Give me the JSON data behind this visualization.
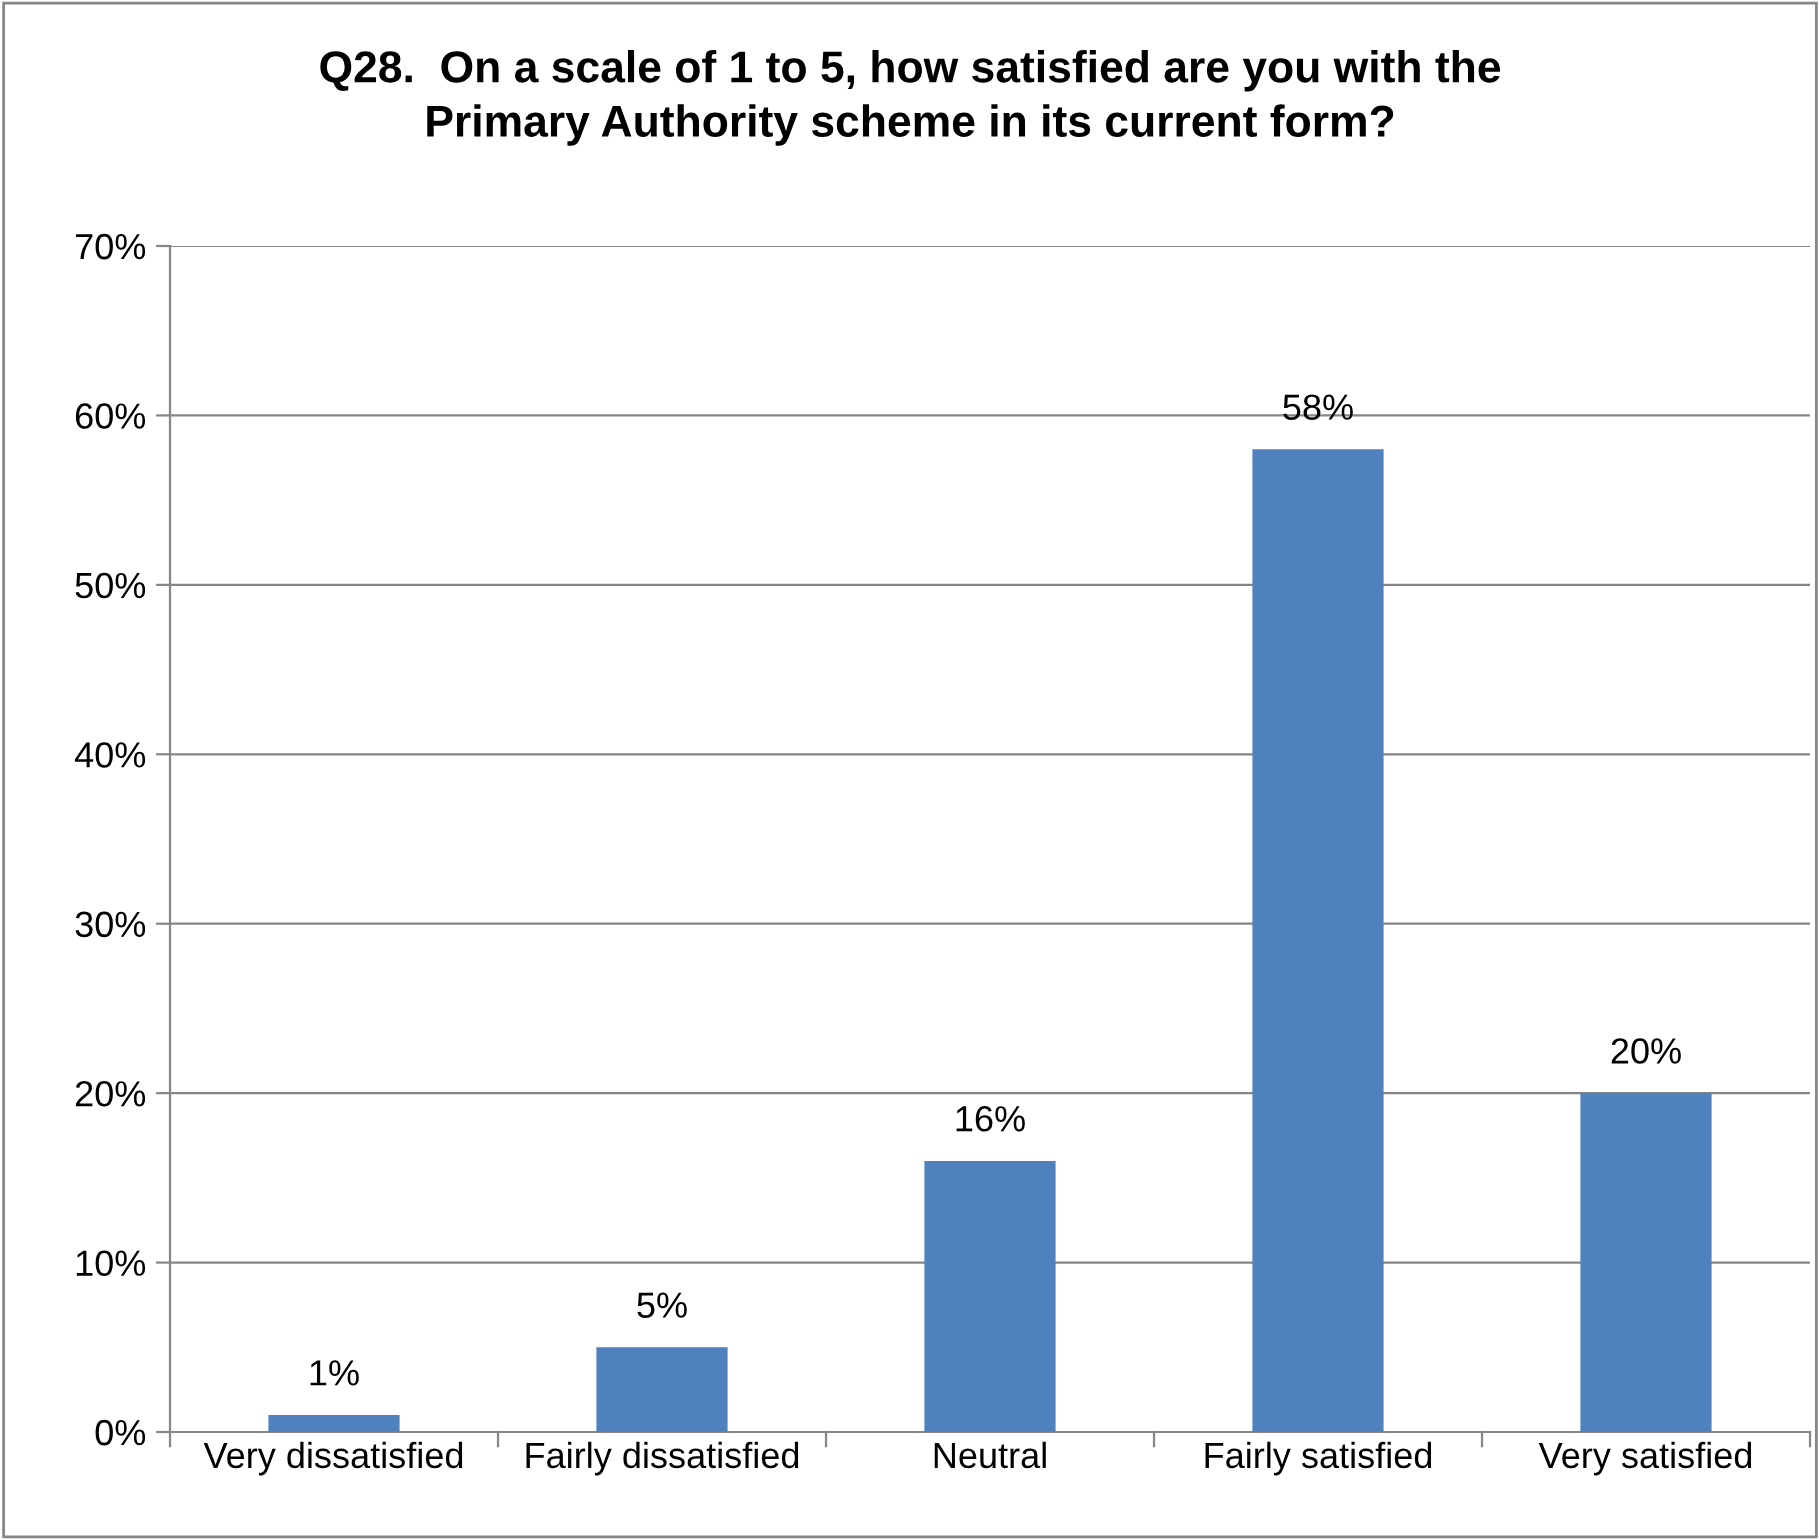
{
  "chart_data": {
    "type": "bar",
    "title": "Q28.  On a scale of 1 to 5, how satisfied are you with the\nPrimary Authority scheme in its current form?",
    "categories": [
      "Very dissatisfied",
      "Fairly dissatisfied",
      "Neutral",
      "Fairly satisfied",
      "Very satisfied"
    ],
    "values": [
      1,
      5,
      16,
      58,
      20
    ],
    "value_labels": [
      "1%",
      "5%",
      "16%",
      "58%",
      "20%"
    ],
    "color": "#4f81bd",
    "ylim": [
      0,
      70
    ],
    "yticks": [
      {
        "value": 0,
        "label": "0%"
      },
      {
        "value": 10,
        "label": "10%"
      },
      {
        "value": 20,
        "label": "20%"
      },
      {
        "value": 30,
        "label": "30%"
      },
      {
        "value": 40,
        "label": "40%"
      },
      {
        "value": 50,
        "label": "50%"
      },
      {
        "value": 60,
        "label": "60%"
      },
      {
        "value": 70,
        "label": "70%"
      }
    ],
    "grid": "y",
    "legend": false
  }
}
